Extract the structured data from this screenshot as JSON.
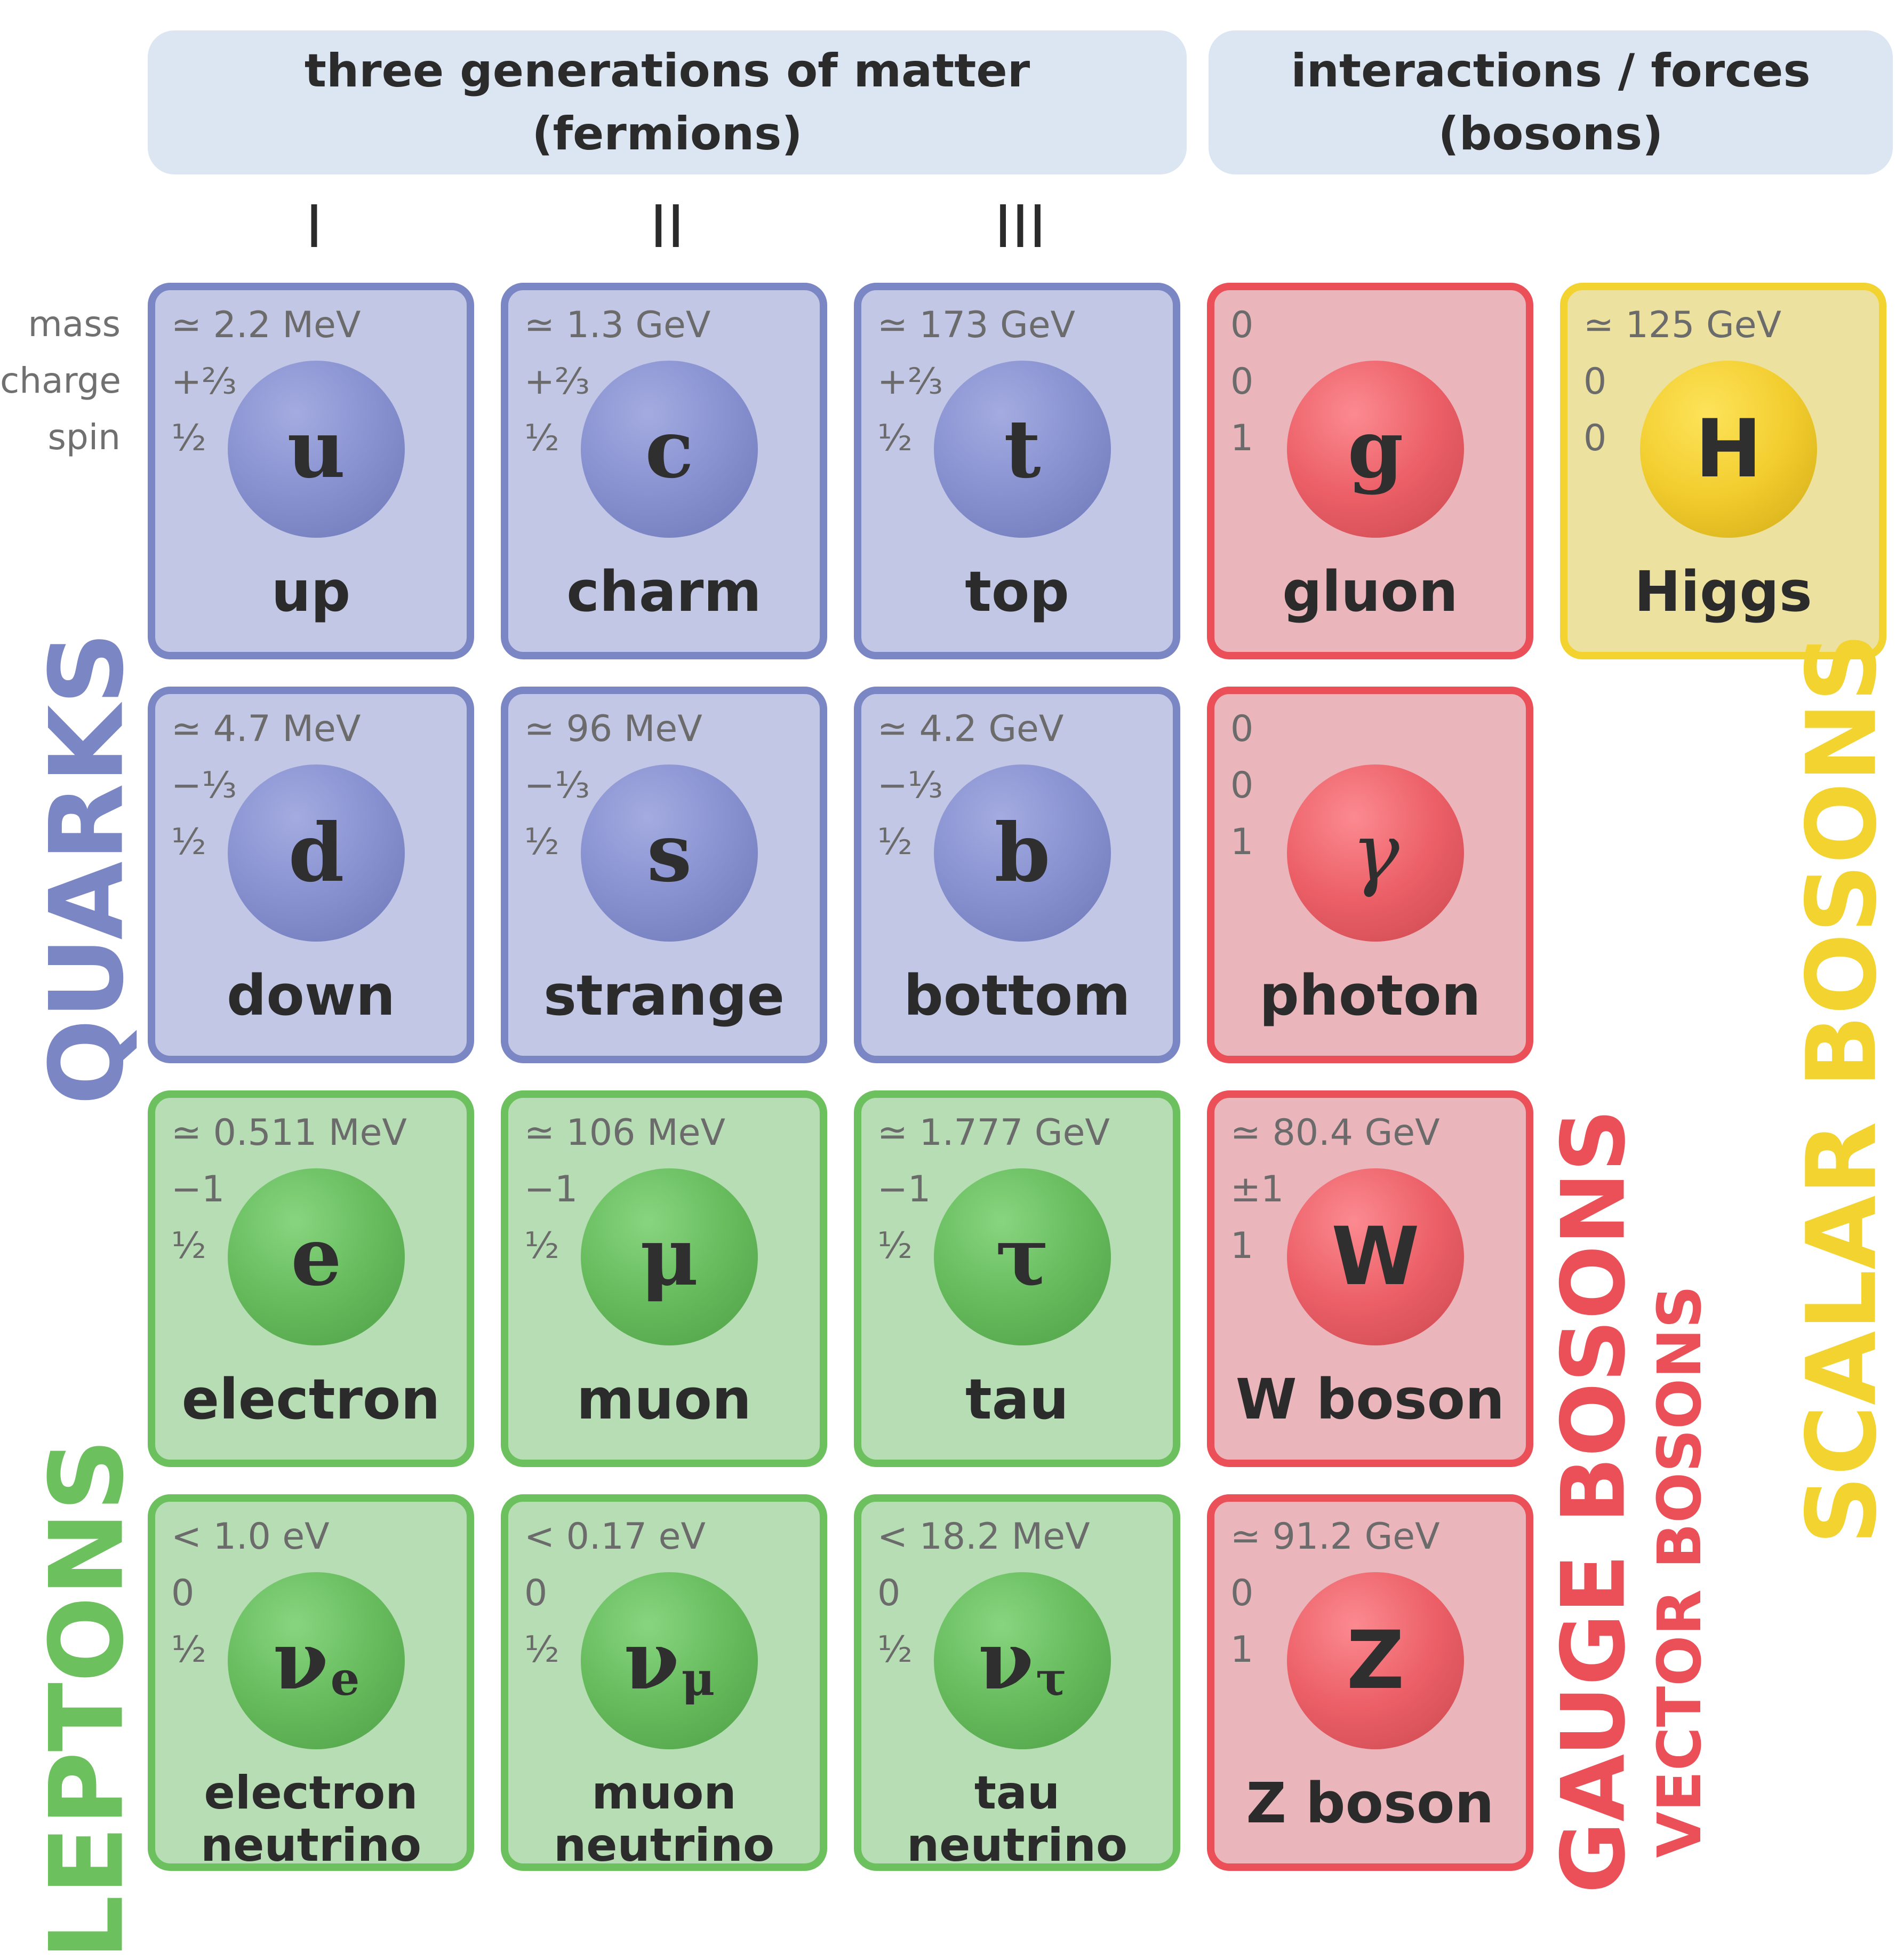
{
  "header": {
    "fermions_line1": "three generations of matter",
    "fermions_line2": "(fermions)",
    "bosons_line1": "interactions / forces",
    "bosons_line2": "(bosons)"
  },
  "generations": [
    "I",
    "II",
    "III"
  ],
  "row_labels": {
    "mass": "mass",
    "charge": "charge",
    "spin": "spin"
  },
  "groups": {
    "quarks": "QUARKS",
    "leptons": "LEPTONS",
    "gauge_bosons": "GAUGE BOSONS",
    "vector_bosons": "VECTOR BOSONS",
    "scalar_bosons": "SCALAR BOSONS"
  },
  "colors": {
    "quark": "#7b86c4",
    "lepton": "#6cc05e",
    "gauge": "#eb4f58",
    "scalar": "#f2d330",
    "header_bg": "#dce6f3"
  },
  "particles": {
    "up": {
      "mass": "≃ 2.2 MeV",
      "charge": "+²⁄₃",
      "spin": "½",
      "symbol": "u",
      "name": "up"
    },
    "charm": {
      "mass": "≃ 1.3 GeV",
      "charge": "+²⁄₃",
      "spin": "½",
      "symbol": "c",
      "name": "charm"
    },
    "top": {
      "mass": "≃ 173 GeV",
      "charge": "+²⁄₃",
      "spin": "½",
      "symbol": "t",
      "name": "top"
    },
    "gluon": {
      "mass": "0",
      "charge": "0",
      "spin": "1",
      "symbol": "g",
      "name": "gluon"
    },
    "higgs": {
      "mass": "≃ 125 GeV",
      "charge": "0",
      "spin": "0",
      "symbol": "H",
      "name": "Higgs"
    },
    "down": {
      "mass": "≃ 4.7 MeV",
      "charge": "−¹⁄₃",
      "spin": "½",
      "symbol": "d",
      "name": "down"
    },
    "strange": {
      "mass": "≃ 96 MeV",
      "charge": "−¹⁄₃",
      "spin": "½",
      "symbol": "s",
      "name": "strange"
    },
    "bottom": {
      "mass": "≃ 4.2 GeV",
      "charge": "−¹⁄₃",
      "spin": "½",
      "symbol": "b",
      "name": "bottom"
    },
    "photon": {
      "mass": "0",
      "charge": "0",
      "spin": "1",
      "symbol": "γ",
      "name": "photon"
    },
    "electron": {
      "mass": "≃ 0.511 MeV",
      "charge": "−1",
      "spin": "½",
      "symbol": "e",
      "name": "electron"
    },
    "muon": {
      "mass": "≃ 106 MeV",
      "charge": "−1",
      "spin": "½",
      "symbol": "μ",
      "name": "muon"
    },
    "tau": {
      "mass": "≃ 1.777 GeV",
      "charge": "−1",
      "spin": "½",
      "symbol": "τ",
      "name": "tau"
    },
    "w": {
      "mass": "≃ 80.4 GeV",
      "charge": "±1",
      "spin": "1",
      "symbol": "W",
      "name": "W boson"
    },
    "nue": {
      "mass": "< 1.0 eV",
      "charge": "0",
      "spin": "½",
      "symbol": "ν",
      "sub": "e",
      "name1": "electron",
      "name2": "neutrino"
    },
    "numu": {
      "mass": "< 0.17 eV",
      "charge": "0",
      "spin": "½",
      "symbol": "ν",
      "sub": "μ",
      "name1": "muon",
      "name2": "neutrino"
    },
    "nutau": {
      "mass": "< 18.2 MeV",
      "charge": "0",
      "spin": "½",
      "symbol": "ν",
      "sub": "τ",
      "name1": "tau",
      "name2": "neutrino"
    },
    "z": {
      "mass": "≃ 91.2 GeV",
      "charge": "0",
      "spin": "1",
      "symbol": "Z",
      "name": "Z boson"
    }
  }
}
